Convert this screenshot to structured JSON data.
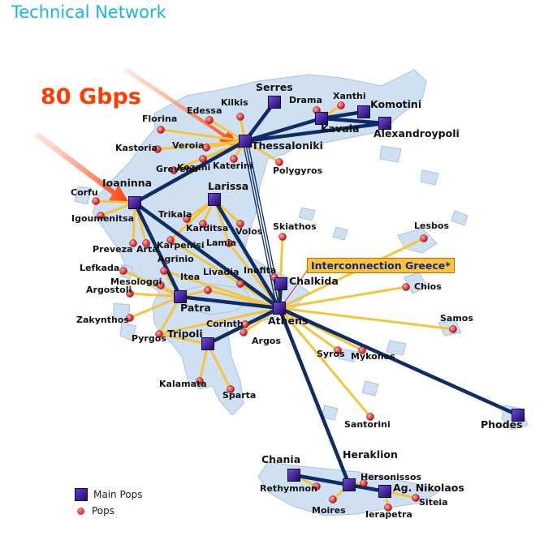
{
  "title": "Technical Network",
  "speed_label": "80 Gbps",
  "interconnection_label": "Interconnection Greece*",
  "legend": {
    "main_pops": "Main Pops",
    "pops": "Pops"
  },
  "colors": {
    "trunk": "#0e2d66",
    "link": "#f3c53a",
    "land": "#cfe0f3",
    "arrow": "#ff3d00",
    "title": "#1ab0ec"
  },
  "main_pops": [
    "Serres",
    "Kavala",
    "Komotini",
    "Alexandroypoli",
    "Thessaloniki",
    "Ioaninna",
    "Larissa",
    "Chalkida",
    "Athens",
    "Patra",
    "Tripoli",
    "Phodes",
    "Chania",
    "Heraklion",
    "Ag. Nikolaos"
  ],
  "pops": [
    "Kilkis",
    "Drama",
    "Xanthi",
    "Edessa",
    "Florina",
    "Veroia",
    "Kastoria",
    "Kozani",
    "Katerini",
    "Polygyros",
    "Grevena",
    "Corfu",
    "Igoumenitsa",
    "Trikala",
    "Karditsa",
    "Volos",
    "Preveza",
    "Arta",
    "Karpenisi",
    "Lamia",
    "Skiathos",
    "Lesbos",
    "Lefkada",
    "Agrinio",
    "Mesologgi",
    "Argostoli",
    "Livadia",
    "Inofita",
    "Itea",
    "Chios",
    "Zakynthos",
    "Pyrgos",
    "Corinth",
    "Argos",
    "Samos",
    "Syros",
    "Mykonos",
    "Kalamata",
    "Sparta",
    "Santorini",
    "Hersonissos",
    "Rethymnon",
    "Moires",
    "Siteia",
    "Ierapetra"
  ]
}
